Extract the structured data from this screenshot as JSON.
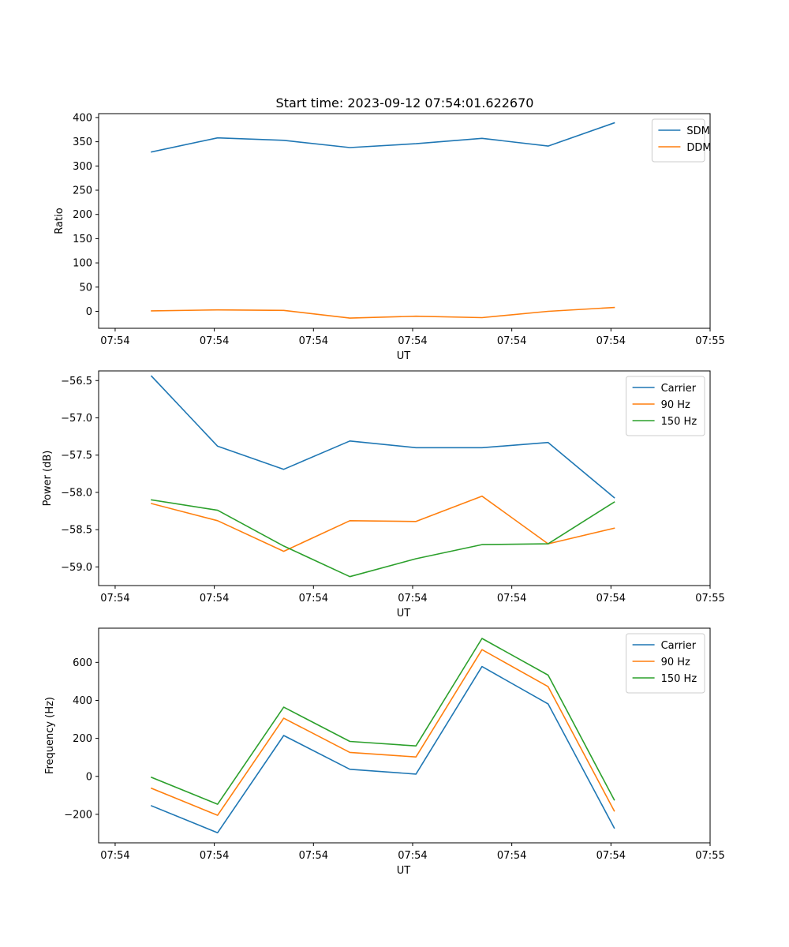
{
  "title": "Start time: 2023-09-12 07:54:01.622670",
  "colors": {
    "blue": "#1f77b4",
    "orange": "#ff7f0e",
    "green": "#2ca02c"
  },
  "chart_data": [
    {
      "type": "line",
      "title": "Start time: 2023-09-12 07:54:01.622670",
      "xlabel": "UT",
      "ylabel": "Ratio",
      "x": [
        1,
        2,
        3,
        4,
        5,
        6,
        7,
        8
      ],
      "xlim": [
        0.2,
        9.45
      ],
      "xticks": [
        0.45,
        1.95,
        3.45,
        4.95,
        6.45,
        7.95,
        9.45
      ],
      "xtick_labels": [
        "07:54",
        "07:54",
        "07:54",
        "07:54",
        "07:54",
        "07:54",
        "07:55"
      ],
      "ylim": [
        -35,
        408
      ],
      "yticks": [
        0,
        50,
        100,
        150,
        200,
        250,
        300,
        350,
        400
      ],
      "ytick_labels": [
        "0",
        "50",
        "100",
        "150",
        "200",
        "250",
        "300",
        "350",
        "400"
      ],
      "legend_position": "top-right",
      "series": [
        {
          "name": "SDM",
          "color": "#1f77b4",
          "values": [
            329,
            358,
            353,
            338,
            346,
            357,
            341,
            389
          ]
        },
        {
          "name": "DDM",
          "color": "#ff7f0e",
          "values": [
            1,
            3,
            2,
            -14,
            -10,
            -13,
            0,
            8
          ]
        }
      ]
    },
    {
      "type": "line",
      "xlabel": "UT",
      "ylabel": "Power (dB)",
      "x": [
        1,
        2,
        3,
        4,
        5,
        6,
        7,
        8
      ],
      "xlim": [
        0.2,
        9.45
      ],
      "xticks": [
        0.45,
        1.95,
        3.45,
        4.95,
        6.45,
        7.95,
        9.45
      ],
      "xtick_labels": [
        "07:54",
        "07:54",
        "07:54",
        "07:54",
        "07:54",
        "07:54",
        "07:55"
      ],
      "ylim": [
        -59.25,
        -56.37
      ],
      "yticks": [
        -59.0,
        -58.5,
        -58.0,
        -57.5,
        -57.0,
        -56.5
      ],
      "ytick_labels": [
        "−59.0",
        "−58.5",
        "−58.0",
        "−57.5",
        "−57.0",
        "−56.5"
      ],
      "legend_position": "top-right",
      "series": [
        {
          "name": "Carrier",
          "color": "#1f77b4",
          "values": [
            -56.44,
            -57.38,
            -57.69,
            -57.31,
            -57.4,
            -57.4,
            -57.33,
            -58.07
          ]
        },
        {
          "name": "90 Hz",
          "color": "#ff7f0e",
          "values": [
            -58.15,
            -58.38,
            -58.79,
            -58.38,
            -58.39,
            -58.05,
            -58.69,
            -58.48
          ]
        },
        {
          "name": "150 Hz",
          "color": "#2ca02c",
          "values": [
            -58.1,
            -58.24,
            -58.72,
            -59.13,
            -58.89,
            -58.7,
            -58.69,
            -58.13
          ]
        }
      ]
    },
    {
      "type": "line",
      "xlabel": "UT",
      "ylabel": "Frequency (Hz)",
      "x": [
        1,
        2,
        3,
        4,
        5,
        6,
        7,
        8
      ],
      "xlim": [
        0.2,
        9.45
      ],
      "xticks": [
        0.45,
        1.95,
        3.45,
        4.95,
        6.45,
        7.95,
        9.45
      ],
      "xtick_labels": [
        "07:54",
        "07:54",
        "07:54",
        "07:54",
        "07:54",
        "07:54",
        "07:55"
      ],
      "ylim": [
        -350,
        780
      ],
      "yticks": [
        -200,
        0,
        200,
        400,
        600
      ],
      "ytick_labels": [
        "−200",
        "0",
        "200",
        "400",
        "600"
      ],
      "legend_position": "top-right",
      "series": [
        {
          "name": "Carrier",
          "color": "#1f77b4",
          "values": [
            -155,
            -297,
            215,
            37,
            12,
            578,
            381,
            -272
          ]
        },
        {
          "name": "90 Hz",
          "color": "#ff7f0e",
          "values": [
            -63,
            -205,
            306,
            126,
            102,
            667,
            472,
            -182
          ]
        },
        {
          "name": "150 Hz",
          "color": "#2ca02c",
          "values": [
            -5,
            -147,
            364,
            184,
            160,
            726,
            533,
            -124
          ]
        }
      ]
    }
  ]
}
